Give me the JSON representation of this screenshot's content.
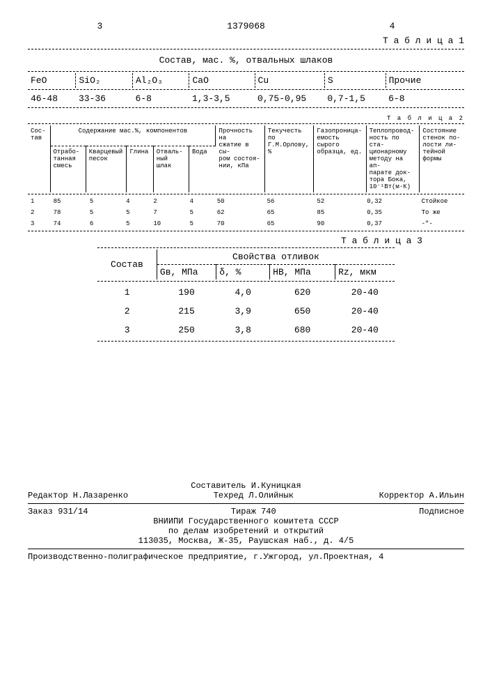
{
  "header": {
    "col_left": "3",
    "patent_no": "1379068",
    "col_right": "4"
  },
  "table1": {
    "label": "Т а б л и ц а 1",
    "caption": "Состав, мас. %, отвальных шлаков",
    "columns": [
      "FeO",
      "SiO₂",
      "Al₂O₃",
      "CaO",
      "Cu",
      "S",
      "Прочие"
    ],
    "row": [
      "46-48",
      "33-36",
      "6-8",
      "1,3-3,5",
      "0,75-0,95",
      "0,7-1,5",
      "6-8"
    ]
  },
  "table2": {
    "label": "Т а б л и ц а 2",
    "head_col0": "Сос-\nтав",
    "group_head": "Содержание мас.%, компонентов",
    "sub_cols": [
      "Отрабо-\nтанная\nсмесь",
      "Кварцевый\nпесок",
      "Глина",
      "Отваль-\nный шлак",
      "Вода"
    ],
    "col5": "Прочность на\nсжатие в сы-\nром состоя-\nнии, кПа",
    "col6": "Текучесть по\nГ.М.Орлову, %",
    "col7": "Газопроница-\nемость сырого\nобразца, ед.",
    "col8": "Теплопровод-\nность по ста-\nционарному\nметоду на ап-\nпарате док-\nтора Бока,\n10⁻¹Вт(м·К)",
    "col9": "Состояние\nстенок по-\nлости ли-\nтейной\nформы",
    "rows": [
      [
        "1",
        "85",
        "5",
        "4",
        "2",
        "4",
        "50",
        "56",
        "52",
        "0,32",
        "Стойкое"
      ],
      [
        "2",
        "78",
        "5",
        "5",
        "7",
        "5",
        "62",
        "65",
        "85",
        "0,35",
        "То же"
      ],
      [
        "3",
        "74",
        "6",
        "5",
        "10",
        "5",
        "70",
        "65",
        "90",
        "0,37",
        "-\"-"
      ]
    ]
  },
  "table3": {
    "label": "Т а б л и ц а 3",
    "col0": "Состав",
    "group_head": "Свойства отливок",
    "sub_cols": [
      "Gв, МПа",
      "δ, %",
      "HB, МПа",
      "Rz, мкм"
    ],
    "rows": [
      [
        "1",
        "190",
        "4,0",
        "620",
        "20-40"
      ],
      [
        "2",
        "215",
        "3,9",
        "650",
        "20-40"
      ],
      [
        "3",
        "250",
        "3,8",
        "680",
        "20-40"
      ]
    ]
  },
  "footer": {
    "compiler": "Составитель И.Куницкая",
    "editor": "Редактор Н.Лазаренко",
    "techred": "Техред Л.Олийнык",
    "corrector": "Корректор А.Ильин",
    "order": "Заказ 931/14",
    "tirazh": "Тираж 740",
    "sub": "Подписное",
    "org1": "ВНИИПИ Государственного комитета СССР",
    "org2": "по делам изобретений и открытий",
    "addr": "113035, Москва, Ж-35, Раушская наб., д. 4/5",
    "printer": "Производственно-полиграфическое предприятие, г.Ужгород, ул.Проектная, 4"
  }
}
